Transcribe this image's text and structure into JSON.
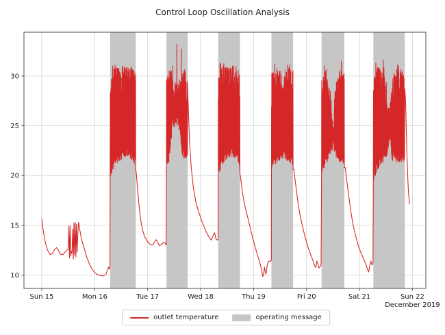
{
  "window": {
    "title": "Control Loop Oscillation Analysis"
  },
  "chart_data": {
    "type": "line",
    "title": "Control Loop Oscillation Analysis",
    "xlabel": "",
    "ylabel": "",
    "x_axis": {
      "tick_days": [
        0,
        1,
        2,
        3,
        4,
        5,
        6,
        7
      ],
      "tick_labels": [
        "Sun 15",
        "Mon 16",
        "Tue 17",
        "Wed 18",
        "Thu 19",
        "Fri 20",
        "Sat 21",
        "Sun 22"
      ],
      "month_label": "December 2019",
      "range_days": [
        -0.336,
        7.253
      ]
    },
    "y_axis": {
      "ticks": [
        10,
        15,
        20,
        25,
        30
      ],
      "range": [
        8.65,
        34.4
      ]
    },
    "grid": true,
    "legend": {
      "position": "bottom-center",
      "items": [
        {
          "label": "outlet temperature",
          "swatch": "line",
          "color": "#d62728"
        },
        {
          "label": "operating message",
          "swatch": "patch",
          "color": "#c6c6c6"
        }
      ]
    },
    "colors": {
      "line": "#d62728",
      "band": "#c6c6c6",
      "grid": "#d7d7d7",
      "spine": "#4d4d4d",
      "text": "#1a1a1a"
    },
    "seed": 11,
    "operating_message_bands_days": [
      [
        1.292,
        1.774
      ],
      [
        2.355,
        2.756
      ],
      [
        3.333,
        3.743
      ],
      [
        4.337,
        4.746
      ],
      [
        5.284,
        5.715
      ],
      [
        6.262,
        6.856
      ]
    ],
    "baseline_segments_day_value": [
      [
        [
          0.0,
          15.65
        ],
        [
          0.03,
          14.4
        ],
        [
          0.07,
          13.2
        ],
        [
          0.11,
          12.5
        ],
        [
          0.16,
          12.05
        ],
        [
          0.2,
          12.15
        ],
        [
          0.24,
          12.55
        ],
        [
          0.28,
          12.75
        ],
        [
          0.31,
          12.5
        ],
        [
          0.35,
          12.1
        ],
        [
          0.4,
          12.05
        ],
        [
          0.44,
          12.3
        ],
        [
          0.475,
          12.5
        ],
        [
          0.5,
          12.6
        ],
        [
          0.512,
          14.9
        ],
        [
          0.524,
          11.7
        ],
        [
          0.536,
          14.95
        ],
        [
          0.548,
          11.9
        ],
        [
          0.56,
          12.4
        ],
        [
          0.572,
          12.2
        ],
        [
          0.584,
          14.6
        ],
        [
          0.596,
          11.6
        ],
        [
          0.608,
          15.2
        ],
        [
          0.62,
          12.0
        ],
        [
          0.632,
          15.3
        ],
        [
          0.644,
          11.8
        ],
        [
          0.656,
          15.1
        ],
        [
          0.668,
          12.3
        ],
        [
          0.68,
          14.0
        ],
        [
          0.695,
          15.3
        ],
        [
          0.71,
          14.8
        ],
        [
          0.75,
          13.6
        ],
        [
          0.8,
          12.7
        ],
        [
          0.85,
          11.8
        ],
        [
          0.9,
          11.1
        ],
        [
          0.95,
          10.6
        ],
        [
          1.0,
          10.25
        ],
        [
          1.05,
          10.05
        ],
        [
          1.1,
          9.95
        ],
        [
          1.16,
          9.9
        ],
        [
          1.21,
          10.05
        ],
        [
          1.245,
          10.5
        ],
        [
          1.263,
          10.8
        ],
        [
          1.276,
          10.6
        ],
        [
          1.288,
          10.9
        ]
      ],
      [
        [
          1.79,
          20.0
        ],
        [
          1.81,
          18.6
        ],
        [
          1.84,
          16.8
        ],
        [
          1.87,
          15.5
        ],
        [
          1.9,
          14.6
        ],
        [
          1.94,
          13.9
        ],
        [
          1.99,
          13.4
        ],
        [
          2.04,
          13.1
        ],
        [
          2.09,
          13.0
        ],
        [
          2.13,
          13.3
        ],
        [
          2.16,
          13.55
        ],
        [
          2.19,
          13.3
        ],
        [
          2.22,
          12.95
        ],
        [
          2.26,
          13.05
        ],
        [
          2.3,
          13.3
        ],
        [
          2.33,
          13.2
        ],
        [
          2.35,
          13.0
        ]
      ],
      [
        [
          2.77,
          26.5
        ],
        [
          2.79,
          23.5
        ],
        [
          2.82,
          21.0
        ],
        [
          2.86,
          18.9
        ],
        [
          2.91,
          17.3
        ],
        [
          2.96,
          16.4
        ],
        [
          3.01,
          15.6
        ],
        [
          3.06,
          14.9
        ],
        [
          3.11,
          14.3
        ],
        [
          3.16,
          13.8
        ],
        [
          3.2,
          13.5
        ],
        [
          3.24,
          14.0
        ],
        [
          3.265,
          14.25
        ],
        [
          3.29,
          13.6
        ],
        [
          3.315,
          13.5
        ],
        [
          3.33,
          13.6
        ]
      ],
      [
        [
          3.76,
          19.6
        ],
        [
          3.79,
          18.3
        ],
        [
          3.83,
          17.1
        ],
        [
          3.88,
          16.0
        ],
        [
          3.93,
          14.9
        ],
        [
          3.98,
          13.8
        ],
        [
          4.03,
          12.8
        ],
        [
          4.08,
          11.9
        ],
        [
          4.12,
          11.2
        ],
        [
          4.155,
          10.4
        ],
        [
          4.175,
          9.85
        ],
        [
          4.19,
          10.0
        ],
        [
          4.205,
          10.8
        ],
        [
          4.22,
          10.35
        ],
        [
          4.235,
          10.1
        ],
        [
          4.255,
          10.9
        ],
        [
          4.275,
          11.35
        ],
        [
          4.3,
          11.4
        ],
        [
          4.32,
          11.35
        ],
        [
          4.335,
          11.5
        ]
      ],
      [
        [
          4.76,
          20.6
        ],
        [
          4.79,
          19.3
        ],
        [
          4.83,
          17.6
        ],
        [
          4.87,
          16.2
        ],
        [
          4.91,
          15.2
        ],
        [
          4.96,
          14.1
        ],
        [
          5.01,
          13.1
        ],
        [
          5.06,
          12.3
        ],
        [
          5.11,
          11.6
        ],
        [
          5.15,
          11.0
        ],
        [
          5.175,
          10.75
        ],
        [
          5.195,
          11.4
        ],
        [
          5.215,
          11.1
        ],
        [
          5.235,
          10.7
        ],
        [
          5.255,
          10.85
        ],
        [
          5.275,
          11.0
        ]
      ],
      [
        [
          5.73,
          20.8
        ],
        [
          5.76,
          19.5
        ],
        [
          5.8,
          17.8
        ],
        [
          5.84,
          16.3
        ],
        [
          5.88,
          15.0
        ],
        [
          5.93,
          13.9
        ],
        [
          5.98,
          12.9
        ],
        [
          6.03,
          12.2
        ],
        [
          6.08,
          11.6
        ],
        [
          6.12,
          11.1
        ],
        [
          6.155,
          10.5
        ],
        [
          6.175,
          10.3
        ],
        [
          6.195,
          11.0
        ],
        [
          6.215,
          11.4
        ],
        [
          6.235,
          11.0
        ],
        [
          6.255,
          11.2
        ]
      ],
      [
        [
          6.87,
          27.5
        ],
        [
          6.885,
          24.5
        ],
        [
          6.9,
          21.5
        ],
        [
          6.915,
          19.3
        ],
        [
          6.93,
          18.0
        ],
        [
          6.945,
          17.1
        ]
      ]
    ],
    "oscillation_bands": [
      {
        "start": 1.292,
        "end": 1.774,
        "end_mode": "low",
        "low_env": [
          [
            0,
            20.3
          ],
          [
            0.2,
            21.6
          ],
          [
            0.5,
            22.3
          ],
          [
            0.75,
            22.4
          ],
          [
            1,
            21.5
          ]
        ],
        "high_env": [
          [
            0,
            29.5
          ],
          [
            0.15,
            30.8
          ],
          [
            0.5,
            30.9
          ],
          [
            0.85,
            30.8
          ],
          [
            1,
            30.3
          ]
        ],
        "spikes": [
          [
            1.34,
            31.0
          ],
          [
            1.52,
            31.0
          ],
          [
            1.7,
            30.9
          ]
        ]
      },
      {
        "start": 2.355,
        "end": 2.756,
        "end_mode": "high",
        "low_env": [
          [
            0,
            21.3
          ],
          [
            0.12,
            21.8
          ],
          [
            0.28,
            25.3
          ],
          [
            0.5,
            25.6
          ],
          [
            0.62,
            25.0
          ],
          [
            0.75,
            22.3
          ],
          [
            1,
            22.2
          ]
        ],
        "high_env": [
          [
            0,
            30.3
          ],
          [
            0.18,
            30.6
          ],
          [
            0.32,
            29.4
          ],
          [
            0.55,
            29.3
          ],
          [
            0.7,
            29.6
          ],
          [
            0.85,
            30.7
          ],
          [
            1,
            29.2
          ]
        ],
        "spikes": [
          [
            2.475,
            31.0
          ],
          [
            2.549,
            33.2
          ],
          [
            2.636,
            32.7
          ]
        ]
      },
      {
        "start": 3.333,
        "end": 3.743,
        "end_mode": "low",
        "low_env": [
          [
            0,
            20.5
          ],
          [
            0.25,
            21.8
          ],
          [
            0.55,
            22.4
          ],
          [
            0.8,
            22.3
          ],
          [
            1,
            21.0
          ]
        ],
        "high_env": [
          [
            0,
            30.6
          ],
          [
            0.1,
            31.0
          ],
          [
            0.4,
            30.8
          ],
          [
            0.7,
            30.9
          ],
          [
            1,
            30.0
          ]
        ],
        "spikes": [
          [
            3.38,
            31.2
          ],
          [
            3.6,
            31.0
          ]
        ]
      },
      {
        "start": 4.337,
        "end": 4.746,
        "end_mode": "low",
        "low_env": [
          [
            0,
            21.0
          ],
          [
            0.3,
            22.0
          ],
          [
            0.6,
            22.3
          ],
          [
            1,
            21.4
          ]
        ],
        "high_env": [
          [
            0,
            30.2
          ],
          [
            0.2,
            30.8
          ],
          [
            0.45,
            30.4
          ],
          [
            0.5,
            28.5
          ],
          [
            0.6,
            30.5
          ],
          [
            0.85,
            30.9
          ],
          [
            1,
            30.2
          ]
        ],
        "spikes": [
          [
            4.4,
            31.2
          ],
          [
            4.64,
            31.1
          ]
        ]
      },
      {
        "start": 5.284,
        "end": 5.715,
        "end_mode": "low",
        "low_env": [
          [
            0,
            20.8
          ],
          [
            0.25,
            21.9
          ],
          [
            0.45,
            23.0
          ],
          [
            0.5,
            23.6
          ],
          [
            0.55,
            22.8
          ],
          [
            0.75,
            22.0
          ],
          [
            1,
            21.6
          ]
        ],
        "high_env": [
          [
            0,
            30.0
          ],
          [
            0.2,
            30.6
          ],
          [
            0.42,
            27.5
          ],
          [
            0.5,
            24.8
          ],
          [
            0.58,
            28.5
          ],
          [
            0.75,
            30.8
          ],
          [
            1,
            30.4
          ]
        ],
        "spikes": [
          [
            5.34,
            31.0
          ],
          [
            5.66,
            31.5
          ]
        ]
      },
      {
        "start": 6.262,
        "end": 6.856,
        "end_mode": "high",
        "low_env": [
          [
            0,
            20.0
          ],
          [
            0.2,
            21.5
          ],
          [
            0.45,
            22.3
          ],
          [
            0.52,
            24.0
          ],
          [
            0.6,
            22.0
          ],
          [
            0.8,
            21.8
          ],
          [
            1,
            22.0
          ]
        ],
        "high_env": [
          [
            0,
            29.8
          ],
          [
            0.15,
            30.9
          ],
          [
            0.35,
            30.5
          ],
          [
            0.5,
            26.5
          ],
          [
            0.65,
            30.6
          ],
          [
            0.85,
            30.8
          ],
          [
            1,
            29.5
          ]
        ],
        "spikes": [
          [
            6.31,
            31.3
          ],
          [
            6.45,
            31.6
          ],
          [
            6.74,
            31.0
          ]
        ]
      }
    ]
  }
}
